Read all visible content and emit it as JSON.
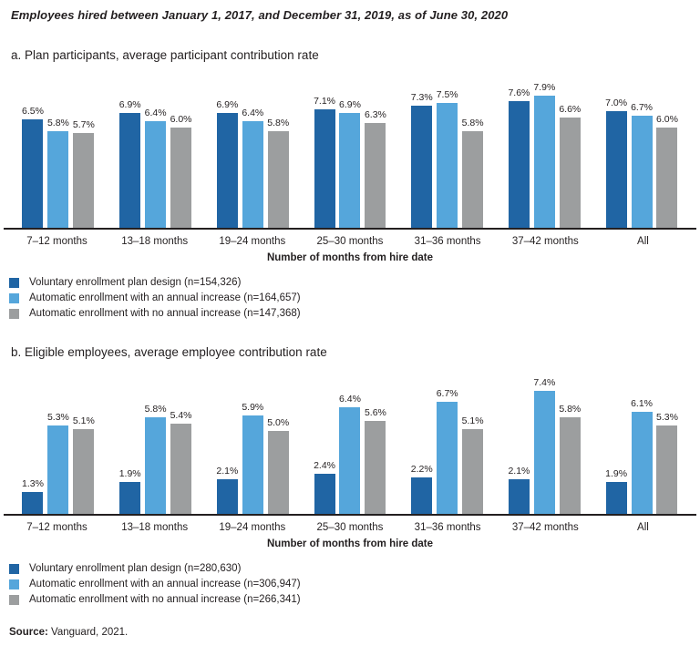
{
  "title": "Employees hired between January 1, 2017, and December 31, 2019, as of June 30, 2020",
  "colors": {
    "series_dark_blue": "#2065A4",
    "series_light_blue": "#55A6DB",
    "series_gray": "#9C9E9F",
    "axis_line": "#231F20",
    "text": "#231F20"
  },
  "chart_data": [
    {
      "type": "bar",
      "panel_label": "a. Plan participants, average participant contribution rate",
      "xlabel": "Number of months from hire date",
      "ylabel": "",
      "ylim": [
        0,
        8
      ],
      "grid": false,
      "legend_position": "bottom-left",
      "value_label_suffix": "%",
      "categories": [
        "7–12 months",
        "13–18 months",
        "19–24 months",
        "25–30 months",
        "31–36 months",
        "37–42 months",
        "All"
      ],
      "series": [
        {
          "name": "Voluntary enrollment plan design (n=154,326)",
          "color": "#2065A4",
          "values": [
            6.5,
            6.9,
            6.9,
            7.1,
            7.3,
            7.6,
            7.0
          ]
        },
        {
          "name": "Automatic enrollment with an annual increase (n=164,657)",
          "color": "#55A6DB",
          "values": [
            5.8,
            6.4,
            6.4,
            6.9,
            7.5,
            7.9,
            6.7
          ]
        },
        {
          "name": "Automatic enrollment with no annual increase  (n=147,368)",
          "color": "#9C9E9F",
          "values": [
            5.7,
            6.0,
            5.8,
            6.3,
            5.8,
            6.6,
            6.0
          ]
        }
      ]
    },
    {
      "type": "bar",
      "panel_label": "b. Eligible employees, average employee contribution rate",
      "xlabel": "Number of months from hire date",
      "ylabel": "",
      "ylim": [
        0,
        8
      ],
      "grid": false,
      "legend_position": "bottom-left",
      "value_label_suffix": "%",
      "categories": [
        "7–12 months",
        "13–18 months",
        "19–24 months",
        "25–30 months",
        "31–36 months",
        "37–42 months",
        "All"
      ],
      "series": [
        {
          "name": "Voluntary enrollment plan design (n=280,630)",
          "color": "#2065A4",
          "values": [
            1.3,
            1.9,
            2.1,
            2.4,
            2.2,
            2.1,
            1.9
          ]
        },
        {
          "name": "Automatic enrollment with an annual increase (n=306,947)",
          "color": "#55A6DB",
          "values": [
            5.3,
            5.8,
            5.9,
            6.4,
            6.7,
            7.4,
            6.1
          ]
        },
        {
          "name": "Automatic enrollment with no annual increase (n=266,341)",
          "color": "#9C9E9F",
          "values": [
            5.1,
            5.4,
            5.0,
            5.6,
            5.1,
            5.8,
            5.3
          ]
        }
      ]
    }
  ],
  "source": {
    "label": "Source:",
    "text": "Vanguard, 2021."
  }
}
